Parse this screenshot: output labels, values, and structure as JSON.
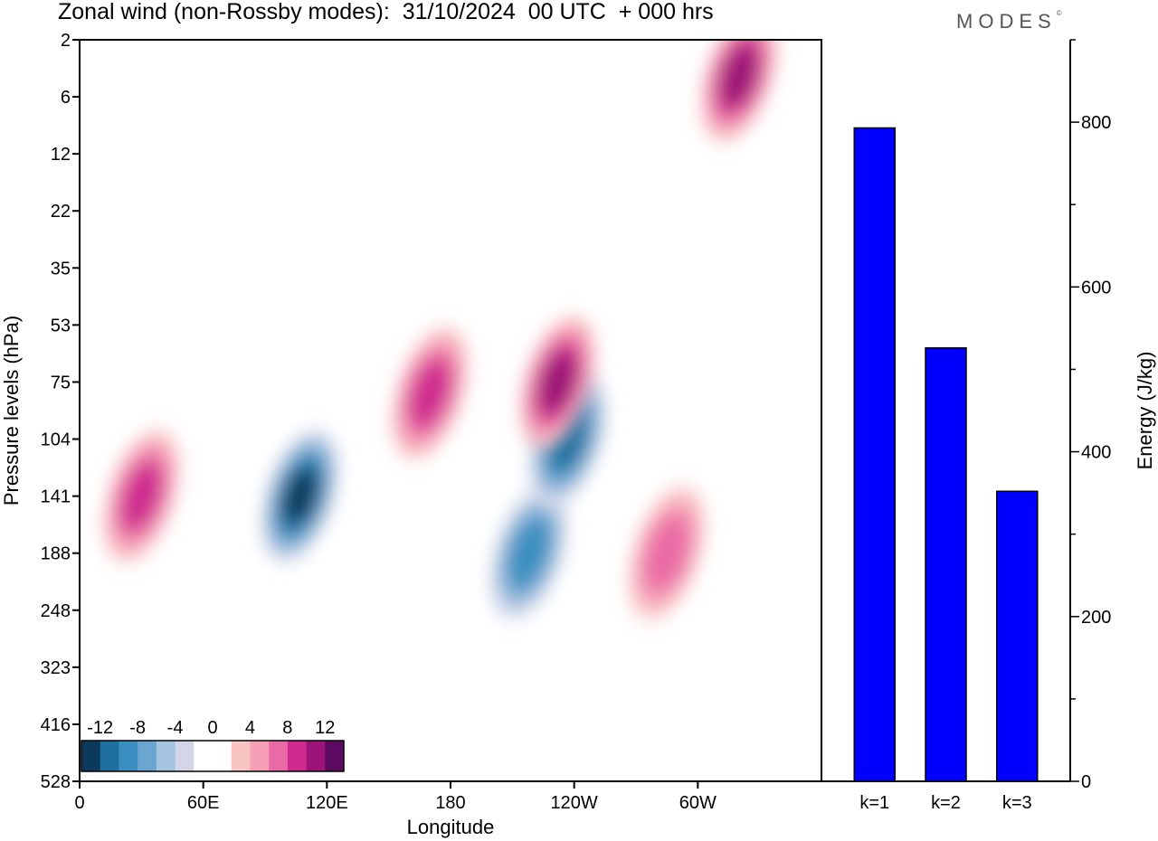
{
  "header": {
    "title": "Zonal wind (non-Rossby modes):  31/10/2024  00 UTC  + 000 hrs",
    "brand": "MODES",
    "brand_mark": "©"
  },
  "chart_data": [
    {
      "type": "heatmap",
      "title": "Zonal wind (non-Rossby modes):  31/10/2024  00 UTC  + 000 hrs",
      "xlabel": "Longitude",
      "ylabel": "Pressure levels (hPa)",
      "x_ticks": [
        "0",
        "60E",
        "120E",
        "180",
        "120W",
        "60W"
      ],
      "x_tick_degrees": [
        0,
        60,
        120,
        180,
        240,
        300
      ],
      "xlim": [
        0,
        360
      ],
      "y_ticks": [
        "2",
        "6",
        "12",
        "22",
        "35",
        "53",
        "75",
        "104",
        "141",
        "188",
        "248",
        "323",
        "416",
        "528"
      ],
      "y_order": "2 at top, 528 at bottom",
      "colorbar": {
        "labels": [
          "-12",
          "-8",
          "-4",
          "0",
          "4",
          "8",
          "12"
        ],
        "colors": [
          "#0b3a5c",
          "#1f6f9f",
          "#3a8ec0",
          "#6aa6d0",
          "#a4c3e0",
          "#d2d6e8",
          "#ffffff",
          "#ffffff",
          "#f8c4c4",
          "#f6a0b8",
          "#ea6aa5",
          "#cf2b8f",
          "#9c1477",
          "#5e0a63"
        ]
      },
      "features": [
        {
          "kind": "neg",
          "lon": 107,
          "plev": 141,
          "peak": -12
        },
        {
          "kind": "pos",
          "lon": 30,
          "plev": 141,
          "peak": 8
        },
        {
          "kind": "neg",
          "lon": 218,
          "plev": 188,
          "peak": -8
        },
        {
          "kind": "neg",
          "lon": 237,
          "plev": 104,
          "peak": -10
        },
        {
          "kind": "pos",
          "lon": 232,
          "plev": 75,
          "peak": 9
        },
        {
          "kind": "pos",
          "lon": 170,
          "plev": 80,
          "peak": 8
        },
        {
          "kind": "pos",
          "lon": 285,
          "plev": 188,
          "peak": 6
        },
        {
          "kind": "pos",
          "lon": 320,
          "plev": 4,
          "peak": 9
        }
      ]
    },
    {
      "type": "bar",
      "categories": [
        "k=1",
        "k=2",
        "k=3"
      ],
      "values": [
        793,
        526,
        352
      ],
      "ylabel": "Energy (J/kg)",
      "ylim": [
        0,
        900
      ],
      "y_ticks": [
        0,
        200,
        400,
        600,
        800
      ],
      "bar_color": "#0000ff"
    }
  ]
}
